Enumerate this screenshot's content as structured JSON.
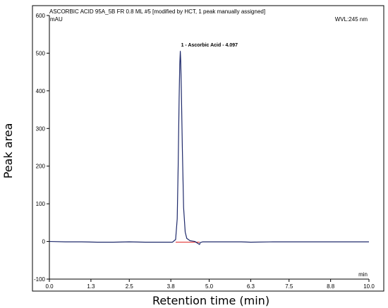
{
  "chart_data": {
    "type": "line",
    "title": "ASCORBIC ACID 95A_5B FR 0.8 ML #5 [modified by HCT, 1 peak manually assigned]",
    "y_unit": "mAU",
    "detector": "WVL:245 nm",
    "x_unit": "min",
    "xlabel": "Retention time (min)",
    "ylabel": "Peak area",
    "xlim": [
      0.0,
      10.0
    ],
    "ylim": [
      -100,
      600
    ],
    "x_ticks": [
      0.0,
      1.3,
      2.5,
      3.8,
      5.0,
      6.3,
      7.5,
      8.8,
      10.0
    ],
    "x_tick_labels": [
      "0.0",
      "1.3",
      "2.5",
      "3.8",
      "5.0",
      "6.3",
      "7.5",
      "8.8",
      "10.0"
    ],
    "y_ticks": [
      -100,
      0,
      100,
      200,
      300,
      400,
      500,
      600
    ],
    "y_tick_labels": [
      "-100",
      "0",
      "100",
      "200",
      "300",
      "400",
      "500",
      "600"
    ],
    "grid": false,
    "series": [
      {
        "color": "#1f2a6b",
        "x": [
          0.0,
          0.5,
          1.0,
          1.5,
          2.0,
          2.5,
          3.0,
          3.5,
          3.85,
          3.95,
          4.0,
          4.03,
          4.06,
          4.08,
          4.097,
          4.11,
          4.13,
          4.16,
          4.2,
          4.25,
          4.3,
          4.4,
          4.55,
          4.7,
          4.72,
          4.8,
          5.0,
          5.5,
          6.0,
          6.3,
          7.0,
          8.0,
          9.0,
          10.0
        ],
        "y": [
          0,
          -1,
          -1,
          -2,
          -2,
          -1,
          -2,
          -2,
          -2,
          5,
          60,
          200,
          380,
          470,
          505,
          480,
          400,
          250,
          90,
          25,
          8,
          2,
          0,
          -8,
          -3,
          -1,
          -1,
          -1,
          -1,
          -2,
          -1,
          -1,
          -1,
          -1
        ]
      }
    ],
    "baseline": {
      "color": "#e02020",
      "x": [
        3.95,
        4.7
      ],
      "y": [
        -2,
        -2
      ]
    },
    "annotations": [
      {
        "text": "1 - Ascorbic Acid - 4.097",
        "x": 4.097,
        "y": 505
      }
    ]
  }
}
